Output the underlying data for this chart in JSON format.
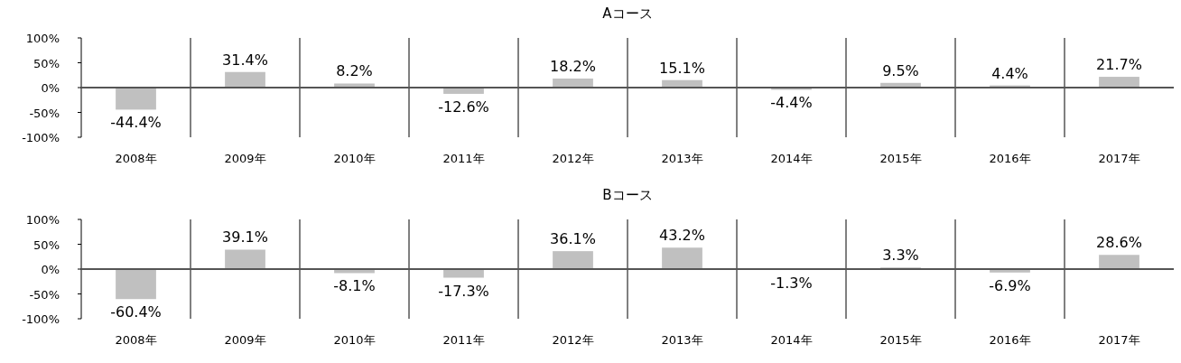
{
  "chart_data": [
    {
      "type": "bar",
      "title": "Aコース",
      "categories": [
        "2008年",
        "2009年",
        "2010年",
        "2011年",
        "2012年",
        "2013年",
        "2014年",
        "2015年",
        "2016年",
        "2017年"
      ],
      "values": [
        -44.4,
        31.4,
        8.2,
        -12.6,
        18.2,
        15.1,
        -4.4,
        9.5,
        4.4,
        21.7
      ],
      "value_labels": [
        "-44.4%",
        "31.4%",
        "8.2%",
        "-12.6%",
        "18.2%",
        "15.1%",
        "-4.4%",
        "9.5%",
        "4.4%",
        "21.7%"
      ],
      "color": "#c0c0c0",
      "ylim": [
        -100,
        100
      ],
      "yticks": [
        {
          "value": -100,
          "label": "-100%"
        },
        {
          "value": -50,
          "label": "-50%"
        },
        {
          "value": 0,
          "label": "0%"
        },
        {
          "value": 50,
          "label": "50%"
        },
        {
          "value": 100,
          "label": "100%"
        }
      ]
    },
    {
      "type": "bar",
      "title": "Bコース",
      "categories": [
        "2008年",
        "2009年",
        "2010年",
        "2011年",
        "2012年",
        "2013年",
        "2014年",
        "2015年",
        "2016年",
        "2017年"
      ],
      "values": [
        -60.4,
        39.1,
        -8.1,
        -17.3,
        36.1,
        43.2,
        -1.3,
        3.3,
        -6.9,
        28.6
      ],
      "value_labels": [
        "-60.4%",
        "39.1%",
        "-8.1%",
        "-17.3%",
        "36.1%",
        "43.2%",
        "-1.3%",
        "3.3%",
        "-6.9%",
        "28.6%"
      ],
      "color": "#c0c0c0",
      "ylim": [
        -100,
        100
      ],
      "yticks": [
        {
          "value": -100,
          "label": "-100%"
        },
        {
          "value": -50,
          "label": "-50%"
        },
        {
          "value": 0,
          "label": "0%"
        },
        {
          "value": 50,
          "label": "50%"
        },
        {
          "value": 100,
          "label": "100%"
        }
      ]
    }
  ]
}
